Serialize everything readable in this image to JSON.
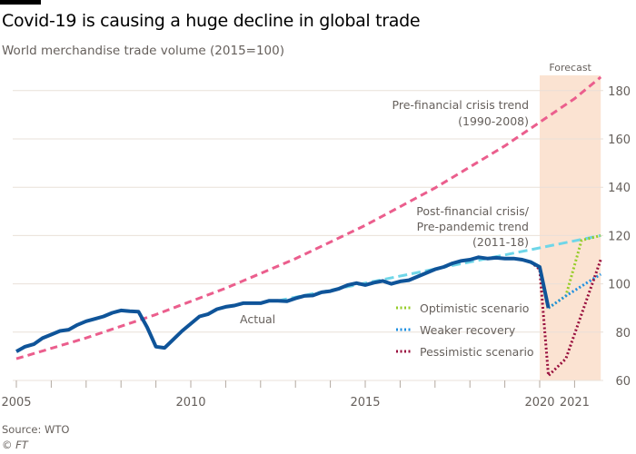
{
  "chart_data": {
    "type": "line",
    "title": "Covid-19 is causing a huge decline in global trade",
    "subtitle": "World merchandise trade volume (2015=100)",
    "source": "Source: WTO",
    "copyright": "© FT",
    "forecast_label": "Forecast",
    "forecast_range": [
      2020,
      2021.75
    ],
    "xlim": [
      2005,
      2021.75
    ],
    "ylim": [
      60,
      185
    ],
    "x_ticks": [
      2005,
      2006,
      2007,
      2008,
      2009,
      2010,
      2011,
      2012,
      2013,
      2014,
      2015,
      2016,
      2017,
      2018,
      2019,
      2020,
      2021
    ],
    "x_tick_labels": [
      "2005",
      "2010",
      "2015",
      "2020",
      "2021"
    ],
    "x_tick_label_values": [
      2005,
      2010,
      2015,
      2020,
      2021
    ],
    "y_ticks": [
      60,
      80,
      100,
      120,
      140,
      160,
      180
    ],
    "y_tick_labels": [
      "60",
      "80",
      "100",
      "120",
      "140",
      "160",
      "180"
    ],
    "grid": true,
    "colors": {
      "actual": "#0f5499",
      "pre_trend": "#eb5e8d",
      "post_trend": "#6fd6e8",
      "optimistic": "#96cc28",
      "weaker": "#1e8fe1",
      "pessimistic": "#990f3d",
      "forecast_band": "#fbe3d2",
      "grid": "#e9e0d8"
    },
    "annotations": {
      "actual": "Actual",
      "pre_trend": [
        "Pre-financial crisis trend",
        "(1990-2008)"
      ],
      "post_trend": [
        "Post-financial crisis/",
        "Pre-pandemic trend",
        "(2011-18)"
      ]
    },
    "legend": [
      "Optimistic scenario",
      "Weaker recovery",
      "Pessimistic scenario"
    ],
    "series": [
      {
        "name": "Actual",
        "style": "solid",
        "x": [
          2005,
          2005.25,
          2005.5,
          2005.75,
          2006,
          2006.25,
          2006.5,
          2006.75,
          2007,
          2007.25,
          2007.5,
          2007.75,
          2008,
          2008.25,
          2008.5,
          2008.75,
          2009,
          2009.25,
          2009.5,
          2009.75,
          2010,
          2010.25,
          2010.5,
          2010.75,
          2011,
          2011.25,
          2011.5,
          2011.75,
          2012,
          2012.25,
          2012.5,
          2012.75,
          2013,
          2013.25,
          2013.5,
          2013.75,
          2014,
          2014.25,
          2014.5,
          2014.75,
          2015,
          2015.25,
          2015.5,
          2015.75,
          2016,
          2016.25,
          2016.5,
          2016.75,
          2017,
          2017.25,
          2017.5,
          2017.75,
          2018,
          2018.25,
          2018.5,
          2018.75,
          2019,
          2019.25,
          2019.5,
          2019.75,
          2020,
          2020.25
        ],
        "y": [
          72,
          74,
          75,
          77.5,
          79,
          80.5,
          81,
          83,
          84.5,
          85.5,
          86.5,
          88,
          89,
          88.7,
          88.5,
          82,
          74,
          73.5,
          77,
          80.5,
          83.5,
          86.5,
          87.5,
          89.5,
          90.5,
          91,
          92,
          92,
          92,
          93,
          93,
          92.8,
          94,
          95,
          95.2,
          96.5,
          97,
          98,
          99.5,
          100.3,
          99.5,
          100.5,
          101.2,
          100,
          101,
          101.5,
          103,
          104.5,
          106,
          107,
          108.5,
          109.5,
          110,
          111,
          110.5,
          110.8,
          110.5,
          110.5,
          110,
          109,
          107,
          90
        ]
      },
      {
        "name": "Pre-financial crisis trend (1990-2008)",
        "style": "dashed",
        "x": [
          2005,
          2007,
          2009,
          2011,
          2013,
          2015,
          2017,
          2019,
          2021,
          2021.75
        ],
        "y": [
          69,
          77.6,
          87.3,
          98.2,
          110.4,
          124.2,
          139.7,
          157.1,
          176.7,
          185.6
        ]
      },
      {
        "name": "Post-financial crisis/Pre-pandemic trend (2011-18)",
        "style": "dashed",
        "x": [
          2012.5,
          2021.75
        ],
        "y": [
          93,
          120
        ]
      },
      {
        "name": "Optimistic scenario",
        "style": "dotted",
        "x": [
          2020.25,
          2020.75,
          2021.2,
          2021.75
        ],
        "y": [
          90,
          95,
          118,
          120
        ]
      },
      {
        "name": "Weaker recovery",
        "style": "dotted",
        "x": [
          2020.25,
          2020.75,
          2021.75
        ],
        "y": [
          90,
          95,
          104
        ]
      },
      {
        "name": "Pessimistic scenario",
        "style": "dotted",
        "x": [
          2019.75,
          2020,
          2020.25,
          2020.75,
          2021.75
        ],
        "y": [
          109,
          106,
          62,
          69,
          110
        ]
      }
    ]
  }
}
